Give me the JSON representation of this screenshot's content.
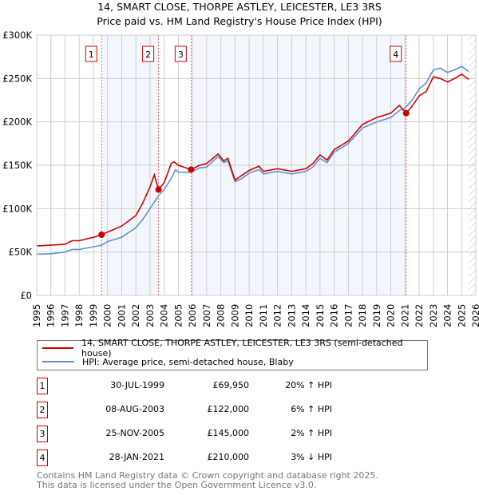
{
  "title_line1": "14, SMART CLOSE, THORPE ASTLEY, LEICESTER, LE3 3RS",
  "title_line2": "Price paid vs. HM Land Registry's House Price Index (HPI)",
  "chart_data": {
    "type": "line",
    "title": "14, SMART CLOSE, THORPE ASTLEY, LEICESTER, LE3 3RS — Price paid vs. HM Land Registry's House Price Index (HPI)",
    "xlim": [
      1995,
      2026
    ],
    "ylim": [
      0,
      300000
    ],
    "yticks": [
      {
        "v": 0,
        "label": "£0"
      },
      {
        "v": 50000,
        "label": "£50K"
      },
      {
        "v": 100000,
        "label": "£100K"
      },
      {
        "v": 150000,
        "label": "£150K"
      },
      {
        "v": 200000,
        "label": "£200K"
      },
      {
        "v": 250000,
        "label": "£250K"
      },
      {
        "v": 300000,
        "label": "£300K"
      }
    ],
    "xticks": [
      "1995",
      "1996",
      "1997",
      "1998",
      "1999",
      "2000",
      "2001",
      "2002",
      "2003",
      "2004",
      "2005",
      "2006",
      "2007",
      "2008",
      "2009",
      "2010",
      "2011",
      "2012",
      "2013",
      "2014",
      "2015",
      "2016",
      "2017",
      "2018",
      "2019",
      "2020",
      "2021",
      "2022",
      "2023",
      "2024",
      "2025",
      "2026"
    ],
    "forecast_from": 2025.5,
    "series": [
      {
        "name": "14, SMART CLOSE, THORPE ASTLEY, LEICESTER, LE3 3RS (semi-detached house)",
        "color": "#cc0000",
        "x": [
          1995,
          1996,
          1997,
          1997.5,
          1998,
          1999,
          1999.58,
          2000,
          2001,
          2002,
          2002.5,
          2003,
          2003.3,
          2003.6,
          2004,
          2004.5,
          2004.7,
          2005,
          2005.9,
          2006.5,
          2007,
          2007.8,
          2008.2,
          2008.5,
          2009,
          2010,
          2010.7,
          2011,
          2012,
          2013,
          2014,
          2014.5,
          2015,
          2015.5,
          2016,
          2016.5,
          2017,
          2018,
          2019,
          2020,
          2020.6,
          2021.08,
          2021.5,
          2022,
          2022.5,
          2023,
          2023.5,
          2024,
          2024.5,
          2025,
          2025.5
        ],
        "y": [
          57000,
          58000,
          59000,
          63000,
          63000,
          67000,
          69950,
          73000,
          80000,
          92000,
          107000,
          125000,
          139000,
          122000,
          130000,
          152000,
          154000,
          150000,
          145000,
          150000,
          152000,
          163000,
          155000,
          158000,
          133000,
          144000,
          149000,
          143000,
          146000,
          143000,
          146000,
          152000,
          162000,
          156000,
          168000,
          173000,
          178000,
          197000,
          205000,
          210000,
          219000,
          210000,
          218000,
          230000,
          235000,
          252000,
          250000,
          246000,
          250000,
          255000,
          249000
        ]
      },
      {
        "name": "HPI: Average price, semi-detached house, Blaby",
        "color": "#6090d0",
        "x": [
          1995,
          1996,
          1997,
          1997.5,
          1998,
          1999,
          1999.6,
          2000,
          2001,
          2002,
          2002.5,
          2003,
          2003.6,
          2004,
          2004.5,
          2004.8,
          2005,
          2005.9,
          2006.5,
          2007,
          2007.8,
          2008.2,
          2008.5,
          2009,
          2009.5,
          2010,
          2010.7,
          2011,
          2012,
          2013,
          2014,
          2014.5,
          2015,
          2015.5,
          2016,
          2016.5,
          2017,
          2018,
          2019,
          2020,
          2020.6,
          2021,
          2021.5,
          2022,
          2022.5,
          2023,
          2023.5,
          2024,
          2024.5,
          2025,
          2025.5
        ],
        "y": [
          47500,
          48000,
          50000,
          53000,
          53000,
          56000,
          58000,
          62000,
          67000,
          78000,
          88000,
          100000,
          115000,
          122000,
          135000,
          145000,
          142000,
          142000,
          147000,
          148000,
          160000,
          153000,
          155000,
          131000,
          135000,
          141000,
          145000,
          140000,
          143000,
          140000,
          143000,
          148000,
          158000,
          153000,
          165000,
          170000,
          175000,
          193000,
          200000,
          205000,
          213000,
          216000,
          225000,
          238000,
          245000,
          260000,
          262000,
          257000,
          260000,
          264000,
          258000
        ]
      }
    ],
    "sales": [
      {
        "n": "1",
        "x": 1999.58,
        "price": 69950,
        "date": "30-JUL-1999",
        "price_label": "£69,950",
        "hpi": "20% ↑ HPI"
      },
      {
        "n": "2",
        "x": 2003.6,
        "price": 122000,
        "date": "08-AUG-2003",
        "price_label": "£122,000",
        "hpi": "6% ↑ HPI"
      },
      {
        "n": "3",
        "x": 2005.9,
        "price": 145000,
        "date": "25-NOV-2005",
        "price_label": "£145,000",
        "hpi": "2% ↑ HPI"
      },
      {
        "n": "4",
        "x": 2021.08,
        "price": 210000,
        "date": "28-JAN-2021",
        "price_label": "£210,000",
        "hpi": "3% ↓ HPI"
      }
    ]
  },
  "legend": {
    "red": "14, SMART CLOSE, THORPE ASTLEY, LEICESTER, LE3 3RS (semi-detached house)",
    "blue": "HPI: Average price, semi-detached house, Blaby"
  },
  "footer1": "Contains HM Land Registry data © Crown copyright and database right 2025.",
  "footer2": "This data is licensed under the Open Government Licence v3.0."
}
